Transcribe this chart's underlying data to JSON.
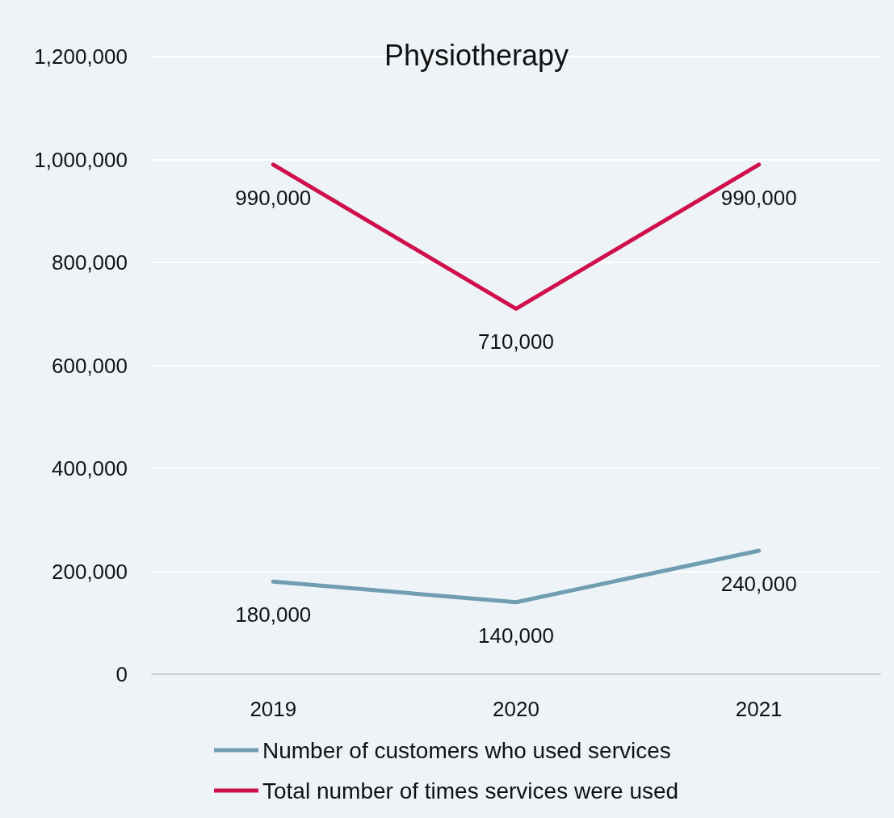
{
  "chart_data": {
    "type": "line",
    "title": "Physiotherapy",
    "categories": [
      "2019",
      "2020",
      "2021"
    ],
    "series": [
      {
        "name": "Number of customers who used services",
        "color": "#6f9db1",
        "values": [
          180000,
          140000,
          240000
        ],
        "value_labels": [
          "180,000",
          "140,000",
          "240,000"
        ]
      },
      {
        "name": "Total number of times services were used",
        "color": "#d0104c",
        "values": [
          990000,
          710000,
          990000
        ],
        "value_labels": [
          "990,000",
          "710,000",
          "990,000"
        ]
      }
    ],
    "ylim": [
      0,
      1200000
    ],
    "yticks": [
      {
        "value": 0,
        "label": "0"
      },
      {
        "value": 200000,
        "label": "200,000"
      },
      {
        "value": 400000,
        "label": "400,000"
      },
      {
        "value": 600000,
        "label": "600,000"
      },
      {
        "value": 800000,
        "label": "800,000"
      },
      {
        "value": 1000000,
        "label": "1,000,000"
      },
      {
        "value": 1200000,
        "label": "1,200,000"
      }
    ],
    "grid": "y",
    "legend": "bottom",
    "marker": "none",
    "line_style": "solid"
  }
}
